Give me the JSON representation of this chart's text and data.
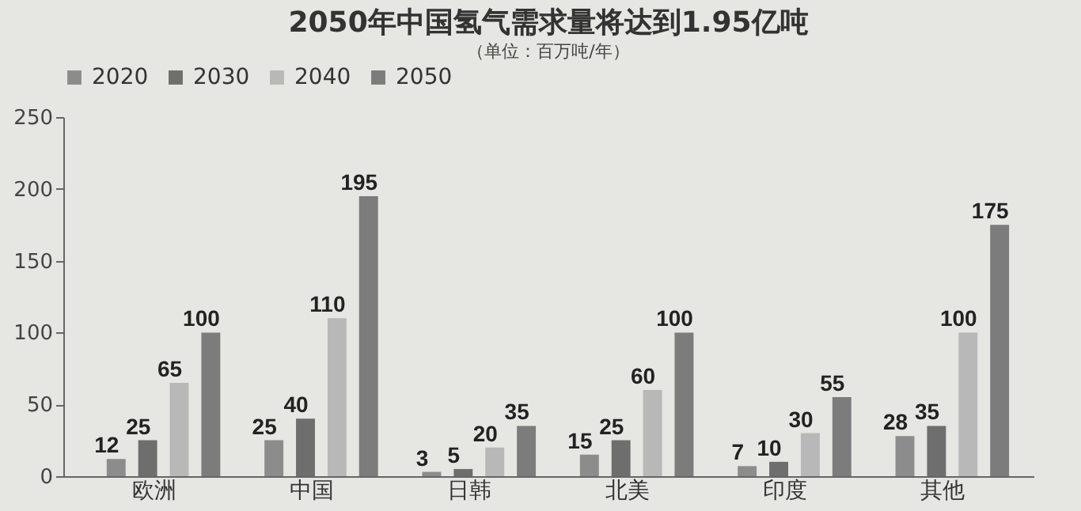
{
  "chart_data": {
    "type": "bar",
    "title": "2050年中国氢气需求量将达到1.95亿吨",
    "subtitle": "（单位：百万吨/年）",
    "categories": [
      "欧洲",
      "中国",
      "日韩",
      "北美",
      "印度",
      "其他"
    ],
    "series": [
      {
        "name": "2020",
        "color": "#8c8c8c",
        "values": [
          12,
          25,
          3,
          15,
          7,
          28
        ]
      },
      {
        "name": "2030",
        "color": "#6e6e6e",
        "values": [
          25,
          40,
          5,
          25,
          10,
          35
        ]
      },
      {
        "name": "2040",
        "color": "#b8b8b8",
        "values": [
          65,
          110,
          20,
          60,
          30,
          100
        ]
      },
      {
        "name": "2050",
        "color": "#7c7c7c",
        "values": [
          100,
          195,
          35,
          100,
          55,
          175
        ]
      }
    ],
    "ylim": [
      0,
      250
    ],
    "yticks": [
      0,
      50,
      100,
      150,
      200,
      250
    ],
    "grid": false,
    "legend": "top",
    "data_labels": true
  }
}
